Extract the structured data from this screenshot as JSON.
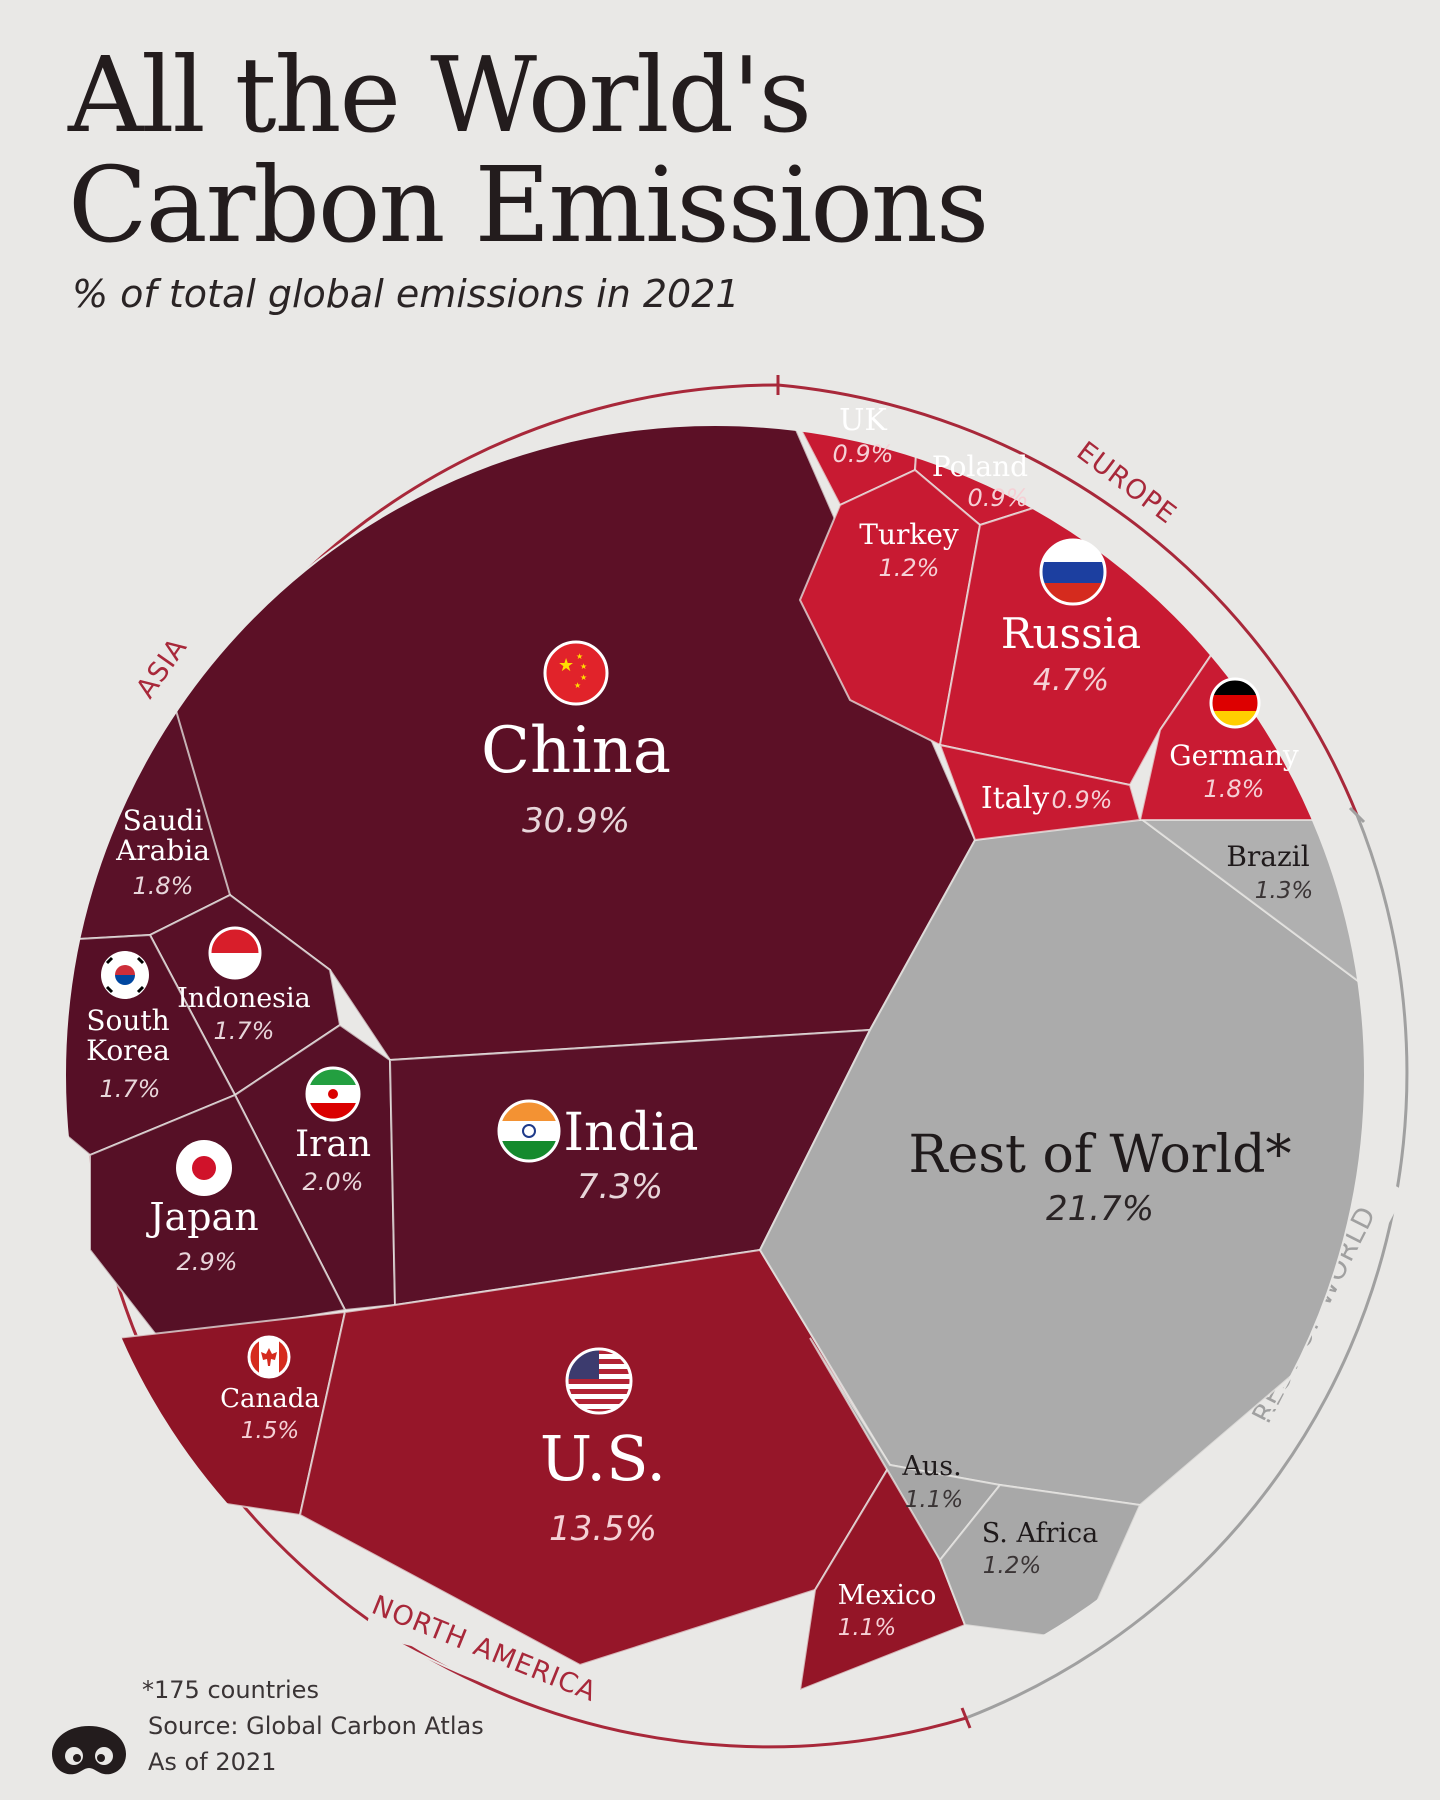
{
  "title_line1": "All the World's",
  "title_line2": "Carbon Emissions",
  "subtitle": "% of total global emissions in 2021",
  "footnote": "*175 countries",
  "source": "Source: Global Carbon Atlas",
  "as_of": "As of 2021",
  "colors": {
    "asia": "#5a1024",
    "north_america": "#8e1426",
    "europe": "#c81a32",
    "rest_of_world": "#a9a9a9",
    "ring_red": "#a8283a",
    "ring_gray": "#a0a0a0"
  },
  "regions": [
    {
      "key": "asia",
      "label": "ASIA",
      "color": "#a8283a"
    },
    {
      "key": "europe",
      "label": "EUROPE",
      "color": "#a8283a"
    },
    {
      "key": "north_america",
      "label": "NORTH AMERICA",
      "color": "#a8283a"
    },
    {
      "key": "rest_of_world",
      "label": "REST OF WORLD",
      "color": "#a0a0a0"
    }
  ],
  "chart_data": {
    "type": "voronoi-treemap",
    "title": "All the World's Carbon Emissions",
    "subtitle": "% of total global emissions in 2021",
    "unit": "%",
    "groups": [
      {
        "name": "ASIA",
        "items": [
          {
            "name": "China",
            "value": 30.9,
            "display": "30.9%",
            "flag": "china-flag"
          },
          {
            "name": "India",
            "value": 7.3,
            "display": "7.3%",
            "flag": "india-flag"
          },
          {
            "name": "Japan",
            "value": 2.9,
            "display": "2.9%",
            "flag": "japan-flag"
          },
          {
            "name": "Iran",
            "value": 2.0,
            "display": "2.0%",
            "flag": "iran-flag"
          },
          {
            "name": "Saudi Arabia",
            "value": 1.8,
            "display": "1.8%"
          },
          {
            "name": "South Korea",
            "value": 1.7,
            "display": "1.7%",
            "flag": "south-korea-flag"
          },
          {
            "name": "Indonesia",
            "value": 1.7,
            "display": "1.7%",
            "flag": "indonesia-flag"
          }
        ]
      },
      {
        "name": "EUROPE",
        "items": [
          {
            "name": "Russia",
            "value": 4.7,
            "display": "4.7%",
            "flag": "russia-flag"
          },
          {
            "name": "Germany",
            "value": 1.8,
            "display": "1.8%",
            "flag": "germany-flag"
          },
          {
            "name": "Turkey",
            "value": 1.2,
            "display": "1.2%"
          },
          {
            "name": "UK",
            "value": 0.9,
            "display": "0.9%"
          },
          {
            "name": "Poland",
            "value": 0.9,
            "display": "0.9%"
          },
          {
            "name": "Italy",
            "value": 0.9,
            "display": "0.9%"
          }
        ]
      },
      {
        "name": "NORTH AMERICA",
        "items": [
          {
            "name": "U.S.",
            "value": 13.5,
            "display": "13.5%",
            "flag": "us-flag"
          },
          {
            "name": "Canada",
            "value": 1.5,
            "display": "1.5%",
            "flag": "canada-flag"
          },
          {
            "name": "Mexico",
            "value": 1.1,
            "display": "1.1%"
          }
        ]
      },
      {
        "name": "REST OF WORLD",
        "items": [
          {
            "name": "Rest of World*",
            "value": 21.7,
            "display": "21.7%"
          },
          {
            "name": "Brazil",
            "value": 1.3,
            "display": "1.3%"
          },
          {
            "name": "S. Africa",
            "value": 1.2,
            "display": "1.2%"
          },
          {
            "name": "Aus.",
            "value": 1.1,
            "display": "1.1%"
          }
        ]
      }
    ]
  }
}
